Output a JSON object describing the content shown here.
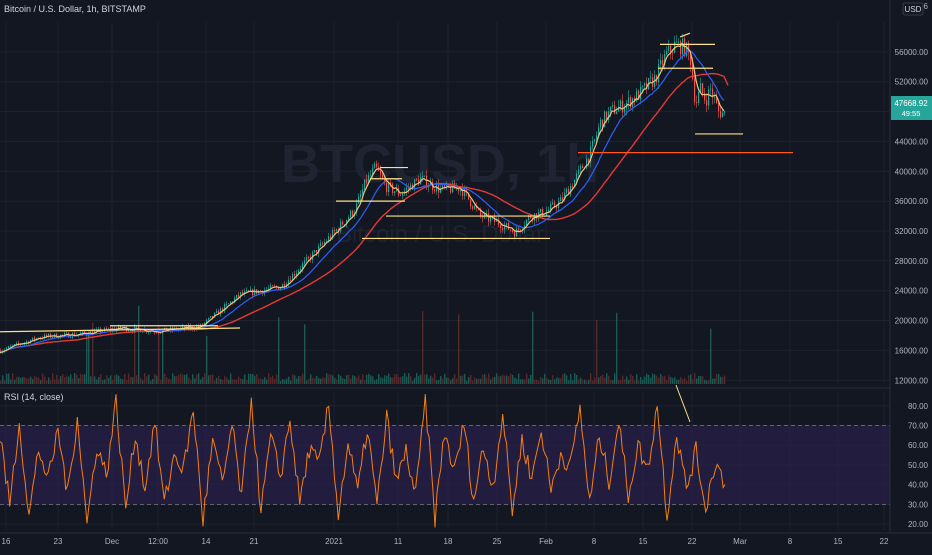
{
  "header": {
    "symbol_title": "Bitcoin / U.S. Dollar, 1h, BITSTAMP",
    "currency_badge": "USD",
    "top_right_fragment": "6"
  },
  "watermark": {
    "ticker": "BTCUSD, 1h",
    "name": "Bitcoin / U.S. Dollar"
  },
  "price_badge": {
    "price": "47668.92",
    "countdown": "49:55",
    "color": "#26a69a"
  },
  "colors": {
    "background": "#131722",
    "grid": "#1e222d",
    "candle_up": "#26a69a",
    "candle_down": "#ef5350",
    "ma_fast": "#f0c27b",
    "ma_mid": "#2962ff",
    "ma_slow": "#e53935",
    "rsi_line": "#f57f17",
    "rsi_band": "#2a1f4a",
    "support_line": "#ff5722",
    "drawing_line": "#ffe082"
  },
  "chart_data": [
    {
      "type": "line",
      "title": "Bitcoin / U.S. Dollar, 1h, BITSTAMP",
      "ylim": [
        11500,
        60000
      ],
      "y_ticks": [
        12000,
        16000,
        20000,
        24000,
        28000,
        32000,
        36000,
        40000,
        44000,
        48000,
        52000,
        56000
      ],
      "y_tick_labels": [
        "12000.00",
        "16000.00",
        "20000.00",
        "24000.00",
        "28000.00",
        "32000.00",
        "36000.00",
        "40000.00",
        "44000.00",
        "48000.00",
        "52000.00",
        "56000.00"
      ],
      "x_tick_labels": [
        "16",
        "23",
        "Dec",
        "12:00",
        "14",
        "21",
        "2021",
        "11",
        "18",
        "25",
        "Feb",
        "8",
        "15",
        "22",
        "Mar",
        "8",
        "15",
        "22"
      ],
      "x": [
        0,
        40,
        80,
        120,
        160,
        200,
        240,
        280,
        310,
        335,
        355,
        365,
        375,
        385,
        400,
        420,
        440,
        460,
        480,
        500,
        515,
        530,
        545,
        560,
        575,
        590,
        600,
        610,
        625,
        640,
        655,
        665,
        675,
        685,
        690,
        695,
        700,
        705,
        710,
        718,
        725
      ],
      "series": [
        {
          "values": [
            16000,
            17800,
            18200,
            19000,
            18600,
            19200,
            23500,
            24500,
            28500,
            32000,
            35000,
            38500,
            40500,
            38000,
            37000,
            39000,
            37500,
            37800,
            34000,
            33000,
            31800,
            34000,
            34500,
            36000,
            39000,
            42500,
            46500,
            48000,
            49000,
            50500,
            52500,
            55500,
            57000,
            56500,
            55000,
            49000,
            51000,
            49500,
            51000,
            48000,
            47668
          ]
        }
      ],
      "horizontal_levels": [
        40000,
        44000,
        32000,
        34000
      ],
      "volume_note": "histogram of hourly volume along bottom of price pane"
    },
    {
      "type": "line",
      "title": "RSI (14, close)",
      "ylim": [
        17,
        87
      ],
      "y_ticks": [
        20,
        30,
        40,
        50,
        60,
        70,
        80
      ],
      "y_tick_labels": [
        "20.00",
        "30.00",
        "40.00",
        "50.00",
        "60.00",
        "70.00",
        "80.00"
      ],
      "band": [
        30,
        70
      ],
      "values": [
        65,
        30,
        72,
        24,
        58,
        42,
        68,
        35,
        75,
        20,
        60,
        45,
        82,
        28,
        66,
        38,
        72,
        30,
        55,
        48,
        78,
        22,
        62,
        40,
        70,
        33,
        84,
        26,
        64,
        44,
        73,
        31,
        58,
        50,
        80,
        25,
        61,
        36,
        69,
        29,
        74,
        41,
        57,
        34,
        83,
        23,
        67,
        46,
        71,
        32,
        59,
        39,
        76,
        27,
        63,
        43,
        68,
        37,
        56,
        49,
        79,
        30,
        65,
        42,
        72,
        35,
        60,
        47,
        81,
        24,
        66,
        38,
        57,
        28,
        52,
        40
      ]
    }
  ]
}
